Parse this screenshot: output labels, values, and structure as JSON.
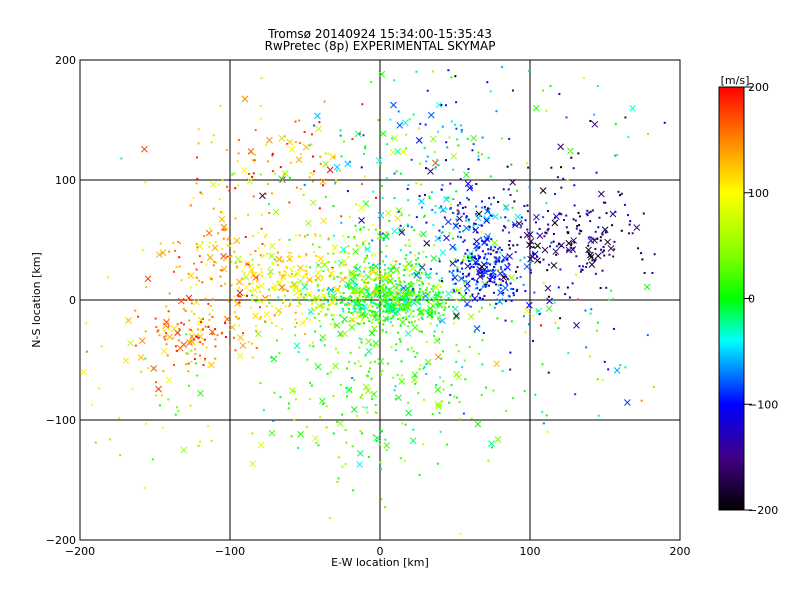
{
  "chart_data": {
    "type": "scatter",
    "title": "Tromsø 20140924 15:34:00-15:35:43",
    "subtitle": "RwPretec (8p) EXPERIMENTAL SKYMAP",
    "xlabel": "E-W location [km]",
    "ylabel": "N-S location [km]",
    "xlim": [
      -200,
      200
    ],
    "ylim": [
      -200,
      200
    ],
    "xticks": [
      "−200",
      "−100",
      "0",
      "100",
      "200"
    ],
    "yticks": [
      "200",
      "100",
      "0",
      "−100",
      "−200"
    ],
    "grid": true,
    "colorbar": {
      "unit": "[m/s]",
      "range": [
        -200,
        200
      ],
      "ticks": [
        "200",
        "100",
        "0",
        "−100",
        "−200"
      ]
    },
    "clusters": [
      {
        "cx": 5,
        "cy": 0,
        "sx": 22,
        "sy": 10,
        "n": 380,
        "v": 5,
        "vs": 25
      },
      {
        "cx": 10,
        "cy": 20,
        "sx": 30,
        "sy": 28,
        "n": 260,
        "v": 10,
        "vs": 40
      },
      {
        "cx": -30,
        "cy": 15,
        "sx": 35,
        "sy": 25,
        "n": 230,
        "v": 80,
        "vs": 35
      },
      {
        "cx": -75,
        "cy": 20,
        "sx": 22,
        "sy": 18,
        "n": 150,
        "v": 110,
        "vs": 25
      },
      {
        "cx": -125,
        "cy": -25,
        "sx": 20,
        "sy": 18,
        "n": 140,
        "v": 150,
        "vs": 25
      },
      {
        "cx": -110,
        "cy": 40,
        "sx": 18,
        "sy": 15,
        "n": 70,
        "v": 140,
        "vs": 25
      },
      {
        "cx": 70,
        "cy": 25,
        "sx": 12,
        "sy": 14,
        "n": 210,
        "v": -100,
        "vs": 25
      },
      {
        "cx": 55,
        "cy": 70,
        "sx": 25,
        "sy": 20,
        "n": 150,
        "v": -90,
        "vs": 40
      },
      {
        "cx": 125,
        "cy": 55,
        "sx": 25,
        "sy": 25,
        "n": 200,
        "v": -160,
        "vs": 35
      },
      {
        "cx": -5,
        "cy": -70,
        "sx": 40,
        "sy": 40,
        "n": 220,
        "v": 20,
        "vs": 30
      },
      {
        "cx": -70,
        "cy": 110,
        "sx": 35,
        "sy": 25,
        "n": 120,
        "v": 130,
        "vs": 60
      },
      {
        "cx": 20,
        "cy": 120,
        "sx": 40,
        "sy": 30,
        "n": 110,
        "v": -20,
        "vs": 60
      },
      {
        "cx": 110,
        "cy": -30,
        "sx": 35,
        "sy": 35,
        "n": 90,
        "v": -30,
        "vs": 70
      },
      {
        "cx": 100,
        "cy": 140,
        "sx": 50,
        "sy": 30,
        "n": 50,
        "v": -60,
        "vs": 80
      },
      {
        "cx": -150,
        "cy": -80,
        "sx": 30,
        "sy": 40,
        "n": 50,
        "v": 80,
        "vs": 50
      }
    ]
  }
}
